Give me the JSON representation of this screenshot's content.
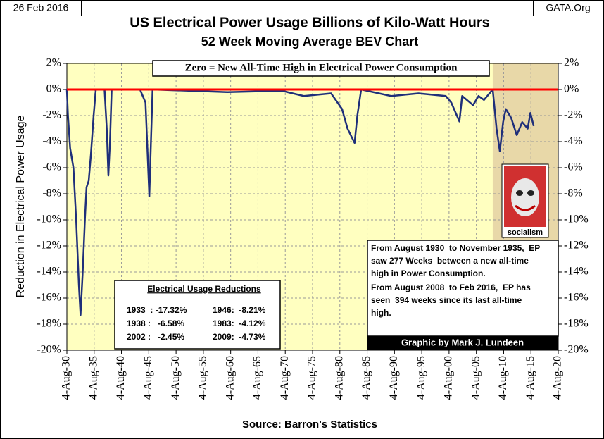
{
  "chart_data": {
    "type": "line",
    "date_label": "26 Feb 2016",
    "site_label": "GATA.Org",
    "title": "US Electrical Power Usage Billions of Kilo-Watt Hours",
    "subtitle": "52 Week Moving Average BEV Chart",
    "ylabel": "Reduction in Electrical Power Usage",
    "xlabel": "Source: Barron's Statistics",
    "banner": "Zero = New All-Time High in Electrical Power Consumption",
    "color": "#1f2f7a",
    "background": "#ffffc0",
    "x": [
      1930.6,
      1930.8,
      1931.2,
      1931.8,
      1932.3,
      1932.8,
      1933.1,
      1933.5,
      1933.9,
      1934.2,
      1934.6,
      1935.0,
      1935.5,
      1935.9,
      1937.5,
      1937.9,
      1938.2,
      1938.5,
      1938.8,
      1944.0,
      1945.0,
      1945.7,
      1946.0,
      1946.3,
      1960.0,
      1970.0,
      1974.0,
      1979.0,
      1981.0,
      1982.0,
      1983.3,
      1983.8,
      1984.5,
      1990.0,
      1995.0,
      2000.0,
      2001.0,
      2002.5,
      2003.0,
      2005.0,
      2006.0,
      2007.0,
      2008.6,
      2009.3,
      2009.9,
      2010.5,
      2011.0,
      2012.0,
      2013.0,
      2014.0,
      2015.0,
      2015.5,
      2016.1
    ],
    "values": [
      0,
      -2,
      -4.5,
      -6,
      -10,
      -15,
      -17.3,
      -14,
      -10,
      -7.5,
      -7,
      -5,
      -2,
      0,
      0,
      -3,
      -6.6,
      -4,
      0,
      0,
      -1,
      -8.2,
      -4,
      0,
      -0.2,
      -0.1,
      -0.5,
      -0.3,
      -1.5,
      -3,
      -4.1,
      -2,
      0,
      -0.5,
      -0.3,
      -0.5,
      -1,
      -2.45,
      -0.5,
      -1.2,
      -0.5,
      -0.8,
      0,
      -3,
      -4.73,
      -2.5,
      -1.5,
      -2.2,
      -3.5,
      -2.5,
      -3,
      -1.8,
      -2.8
    ],
    "xlim": [
      1930.6,
      2020.6
    ],
    "xticks": [
      {
        "value": 1930.6,
        "label": "4-Aug-30"
      },
      {
        "value": 1935.6,
        "label": "4-Aug-35"
      },
      {
        "value": 1940.6,
        "label": "4-Aug-40"
      },
      {
        "value": 1945.6,
        "label": "4-Aug-45"
      },
      {
        "value": 1950.6,
        "label": "4-Aug-50"
      },
      {
        "value": 1955.6,
        "label": "4-Aug-55"
      },
      {
        "value": 1960.6,
        "label": "4-Aug-60"
      },
      {
        "value": 1965.6,
        "label": "4-Aug-65"
      },
      {
        "value": 1970.6,
        "label": "4-Aug-70"
      },
      {
        "value": 1975.6,
        "label": "4-Aug-75"
      },
      {
        "value": 1980.6,
        "label": "4-Aug-80"
      },
      {
        "value": 1985.6,
        "label": "4-Aug-85"
      },
      {
        "value": 1990.6,
        "label": "4-Aug-90"
      },
      {
        "value": 1995.6,
        "label": "4-Aug-95"
      },
      {
        "value": 2000.6,
        "label": "4-Aug-00"
      },
      {
        "value": 2005.6,
        "label": "4-Aug-05"
      },
      {
        "value": 2010.6,
        "label": "4-Aug-10"
      },
      {
        "value": 2015.6,
        "label": "4-Aug-15"
      },
      {
        "value": 2020.6,
        "label": "4-Aug-20"
      }
    ],
    "ylim": [
      -20,
      2
    ],
    "yticks": [
      {
        "value": 2,
        "label": "2%"
      },
      {
        "value": 0,
        "label": "0%"
      },
      {
        "value": -2,
        "label": "-2%"
      },
      {
        "value": -4,
        "label": "-4%"
      },
      {
        "value": -6,
        "label": "-6%"
      },
      {
        "value": -8,
        "label": "-8%"
      },
      {
        "value": -10,
        "label": "-10%"
      },
      {
        "value": -12,
        "label": "-12%"
      },
      {
        "value": -14,
        "label": "-14%"
      },
      {
        "value": -16,
        "label": "-16%"
      },
      {
        "value": -18,
        "label": "-18%"
      },
      {
        "value": -20,
        "label": "-20%"
      }
    ],
    "y2lim": [
      -20,
      2
    ],
    "y2ticks": [
      {
        "value": 2,
        "label": "2%"
      },
      {
        "value": 0,
        "label": "0%"
      },
      {
        "value": -2,
        "label": "-2%"
      },
      {
        "value": -4,
        "label": "-4%"
      },
      {
        "value": -6,
        "label": "-6%"
      },
      {
        "value": -8,
        "label": "-8%"
      },
      {
        "value": -10,
        "label": "-10%"
      },
      {
        "value": -12,
        "label": "-12%"
      },
      {
        "value": -14,
        "label": "-14%"
      },
      {
        "value": -16,
        "label": "-16%"
      },
      {
        "value": -18,
        "label": "-18%"
      },
      {
        "value": -20,
        "label": "-20%"
      }
    ],
    "grid": true,
    "reference_line": {
      "value": 0,
      "color": "#ff0000"
    },
    "shaded_region": {
      "x": [
        2008.6,
        2020.6
      ],
      "color": "#e8d8a8"
    },
    "table": {
      "title": "Electrical Usage Reductions",
      "rows": [
        [
          "1933  : -17.32%",
          "1946:  -8.21%"
        ],
        [
          "1938 :   -6.58%",
          "1983:  -4.12%"
        ],
        [
          "2002 :   -2.45%",
          "2009:  -4.73%"
        ]
      ]
    },
    "notes": [
      [
        "From August 1930  to November 1935,  EP",
        "saw 277 Weeks  between a new all-time",
        "high in Power Consumption."
      ],
      [
        "From August 2008  to Feb 2016,  EP has",
        "seen  394 weeks since its last all-time",
        "high."
      ]
    ],
    "credit": "Graphic by Mark J. Lundeen",
    "image_caption": "socialism"
  }
}
